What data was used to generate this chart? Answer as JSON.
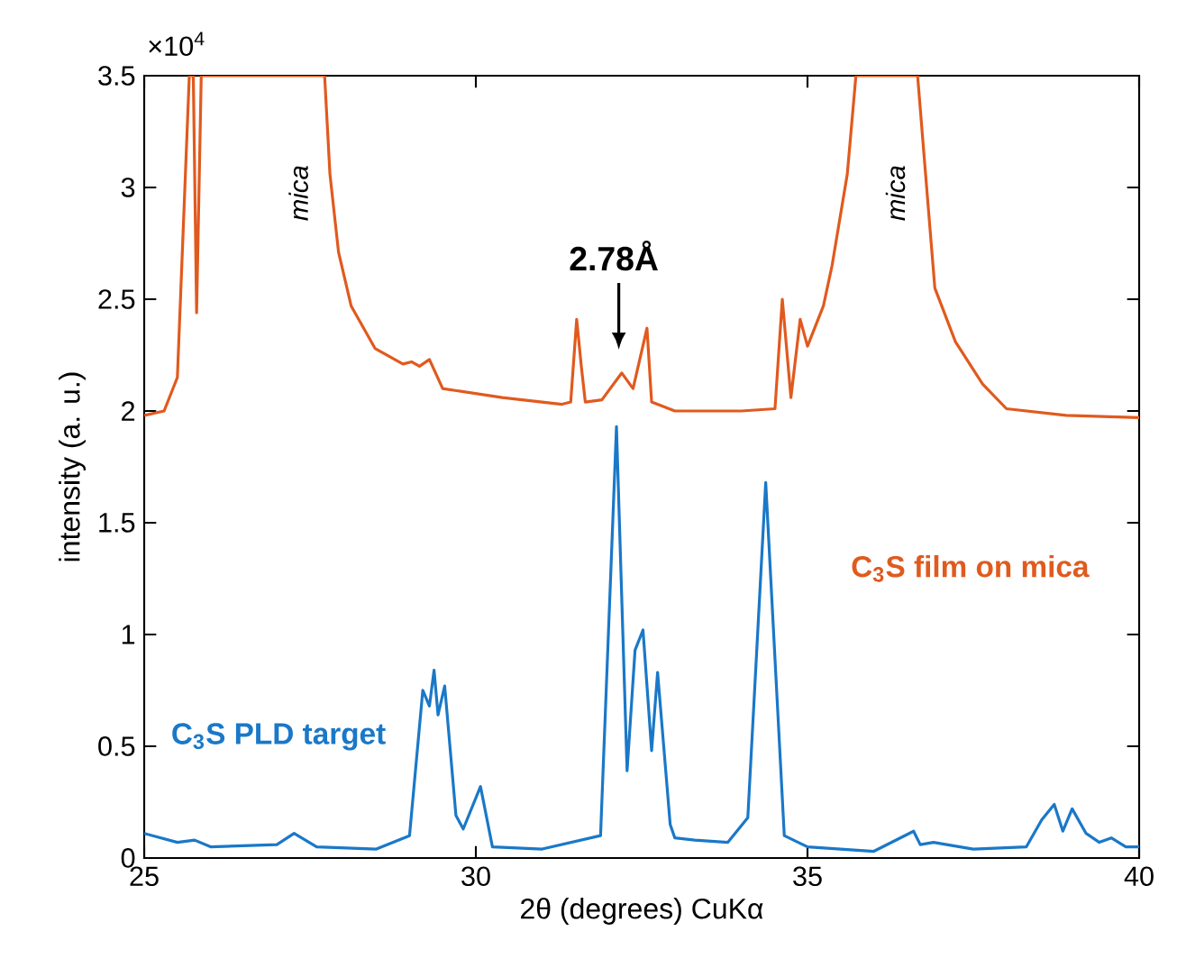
{
  "chart_data": {
    "type": "line",
    "xlabel": "2θ (degrees) CuKα",
    "ylabel": "intensity (a. u.)",
    "xlim": [
      25,
      40
    ],
    "xticks": [
      25,
      30,
      35,
      40
    ],
    "ylim": [
      0,
      3.5
    ],
    "yticks": [
      0,
      0.5,
      1,
      1.5,
      2,
      2.5,
      3,
      3.5
    ],
    "grid": false,
    "legend": false,
    "marker": "none",
    "line_style": "solid",
    "annotations": [
      "×10$^{4}$",
      "mica",
      "mica",
      "2.78Å"
    ],
    "series": [
      {
        "name": "C$_{3}$S film on mica",
        "color": "#e05a1e",
        "x": [
          25.0,
          25.3,
          25.5,
          25.68,
          25.74,
          25.79,
          25.86,
          25.95,
          27.72,
          27.8,
          27.93,
          28.12,
          28.48,
          28.9,
          29.03,
          29.15,
          29.3,
          29.5,
          30.4,
          31.3,
          31.43,
          31.52,
          31.59,
          31.65,
          31.9,
          32.2,
          32.37,
          32.58,
          32.65,
          33.0,
          34.0,
          34.51,
          34.62,
          34.75,
          34.89,
          35.0,
          35.24,
          35.37,
          35.6,
          35.73,
          36.66,
          36.78,
          36.92,
          37.23,
          37.64,
          38.0,
          38.9,
          40.0
        ],
        "values": [
          1.98,
          2.0,
          2.15,
          3.5,
          3.5,
          2.44,
          3.5,
          3.5,
          3.5,
          3.06,
          2.71,
          2.47,
          2.28,
          2.21,
          2.22,
          2.2,
          2.23,
          2.1,
          2.06,
          2.03,
          2.04,
          2.41,
          2.2,
          2.04,
          2.05,
          2.17,
          2.1,
          2.37,
          2.04,
          2.0,
          2.0,
          2.01,
          2.5,
          2.06,
          2.41,
          2.29,
          2.47,
          2.65,
          3.06,
          3.5,
          3.5,
          3.06,
          2.55,
          2.31,
          2.12,
          2.01,
          1.98,
          1.97
        ]
      },
      {
        "name": "C$_{3}$S PLD target",
        "color": "#1a78c8",
        "x": [
          25.0,
          25.5,
          25.76,
          26.0,
          27.0,
          27.26,
          27.6,
          28.5,
          29.0,
          29.2,
          29.3,
          29.37,
          29.43,
          29.53,
          29.7,
          29.81,
          30.07,
          30.25,
          31.0,
          31.88,
          32.12,
          32.28,
          32.4,
          32.52,
          32.65,
          32.74,
          32.93,
          33.0,
          33.3,
          33.8,
          34.1,
          34.37,
          34.65,
          35.0,
          36.0,
          36.6,
          36.7,
          36.9,
          37.5,
          38.3,
          38.53,
          38.72,
          38.85,
          38.99,
          39.2,
          39.4,
          39.58,
          39.8,
          40.0
        ],
        "values": [
          0.11,
          0.07,
          0.08,
          0.05,
          0.06,
          0.11,
          0.05,
          0.04,
          0.1,
          0.75,
          0.68,
          0.84,
          0.64,
          0.77,
          0.19,
          0.13,
          0.32,
          0.05,
          0.04,
          0.1,
          1.93,
          0.39,
          0.93,
          1.02,
          0.48,
          0.83,
          0.15,
          0.09,
          0.08,
          0.07,
          0.18,
          1.68,
          0.1,
          0.05,
          0.03,
          0.12,
          0.06,
          0.07,
          0.04,
          0.05,
          0.17,
          0.24,
          0.12,
          0.22,
          0.11,
          0.07,
          0.09,
          0.05,
          0.05
        ]
      }
    ]
  }
}
